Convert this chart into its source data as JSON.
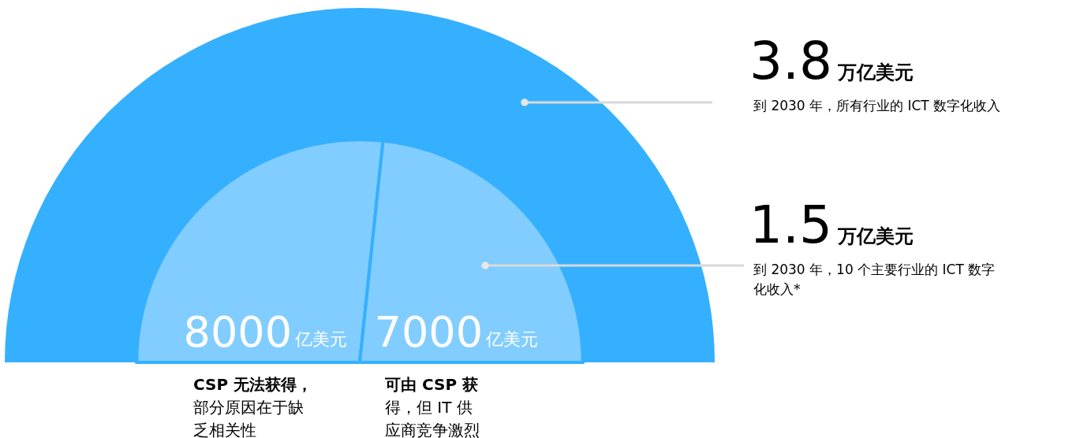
{
  "chart_data": {
    "type": "other",
    "categories": [
      "到 2030 年，所有行业的 ICT 数字化收入",
      "到 2030 年，10 个主要行业的 ICT 数字化收入*",
      "CSP 无法获得，部分原因在于缺乏相关性",
      "可由 CSP 获得，但 IT 供应商竞争激烈"
    ],
    "values": [
      3.8,
      1.5,
      8000,
      7000
    ],
    "value_labels": [
      "3.8",
      "1.5",
      "8000",
      "7000"
    ],
    "annotations": [
      "万亿美元",
      "万亿美元",
      "亿美元",
      "亿美元"
    ],
    "colors": [
      "#35b0ff",
      "#82cdff",
      "#82cdff",
      "#82cdff"
    ]
  }
}
